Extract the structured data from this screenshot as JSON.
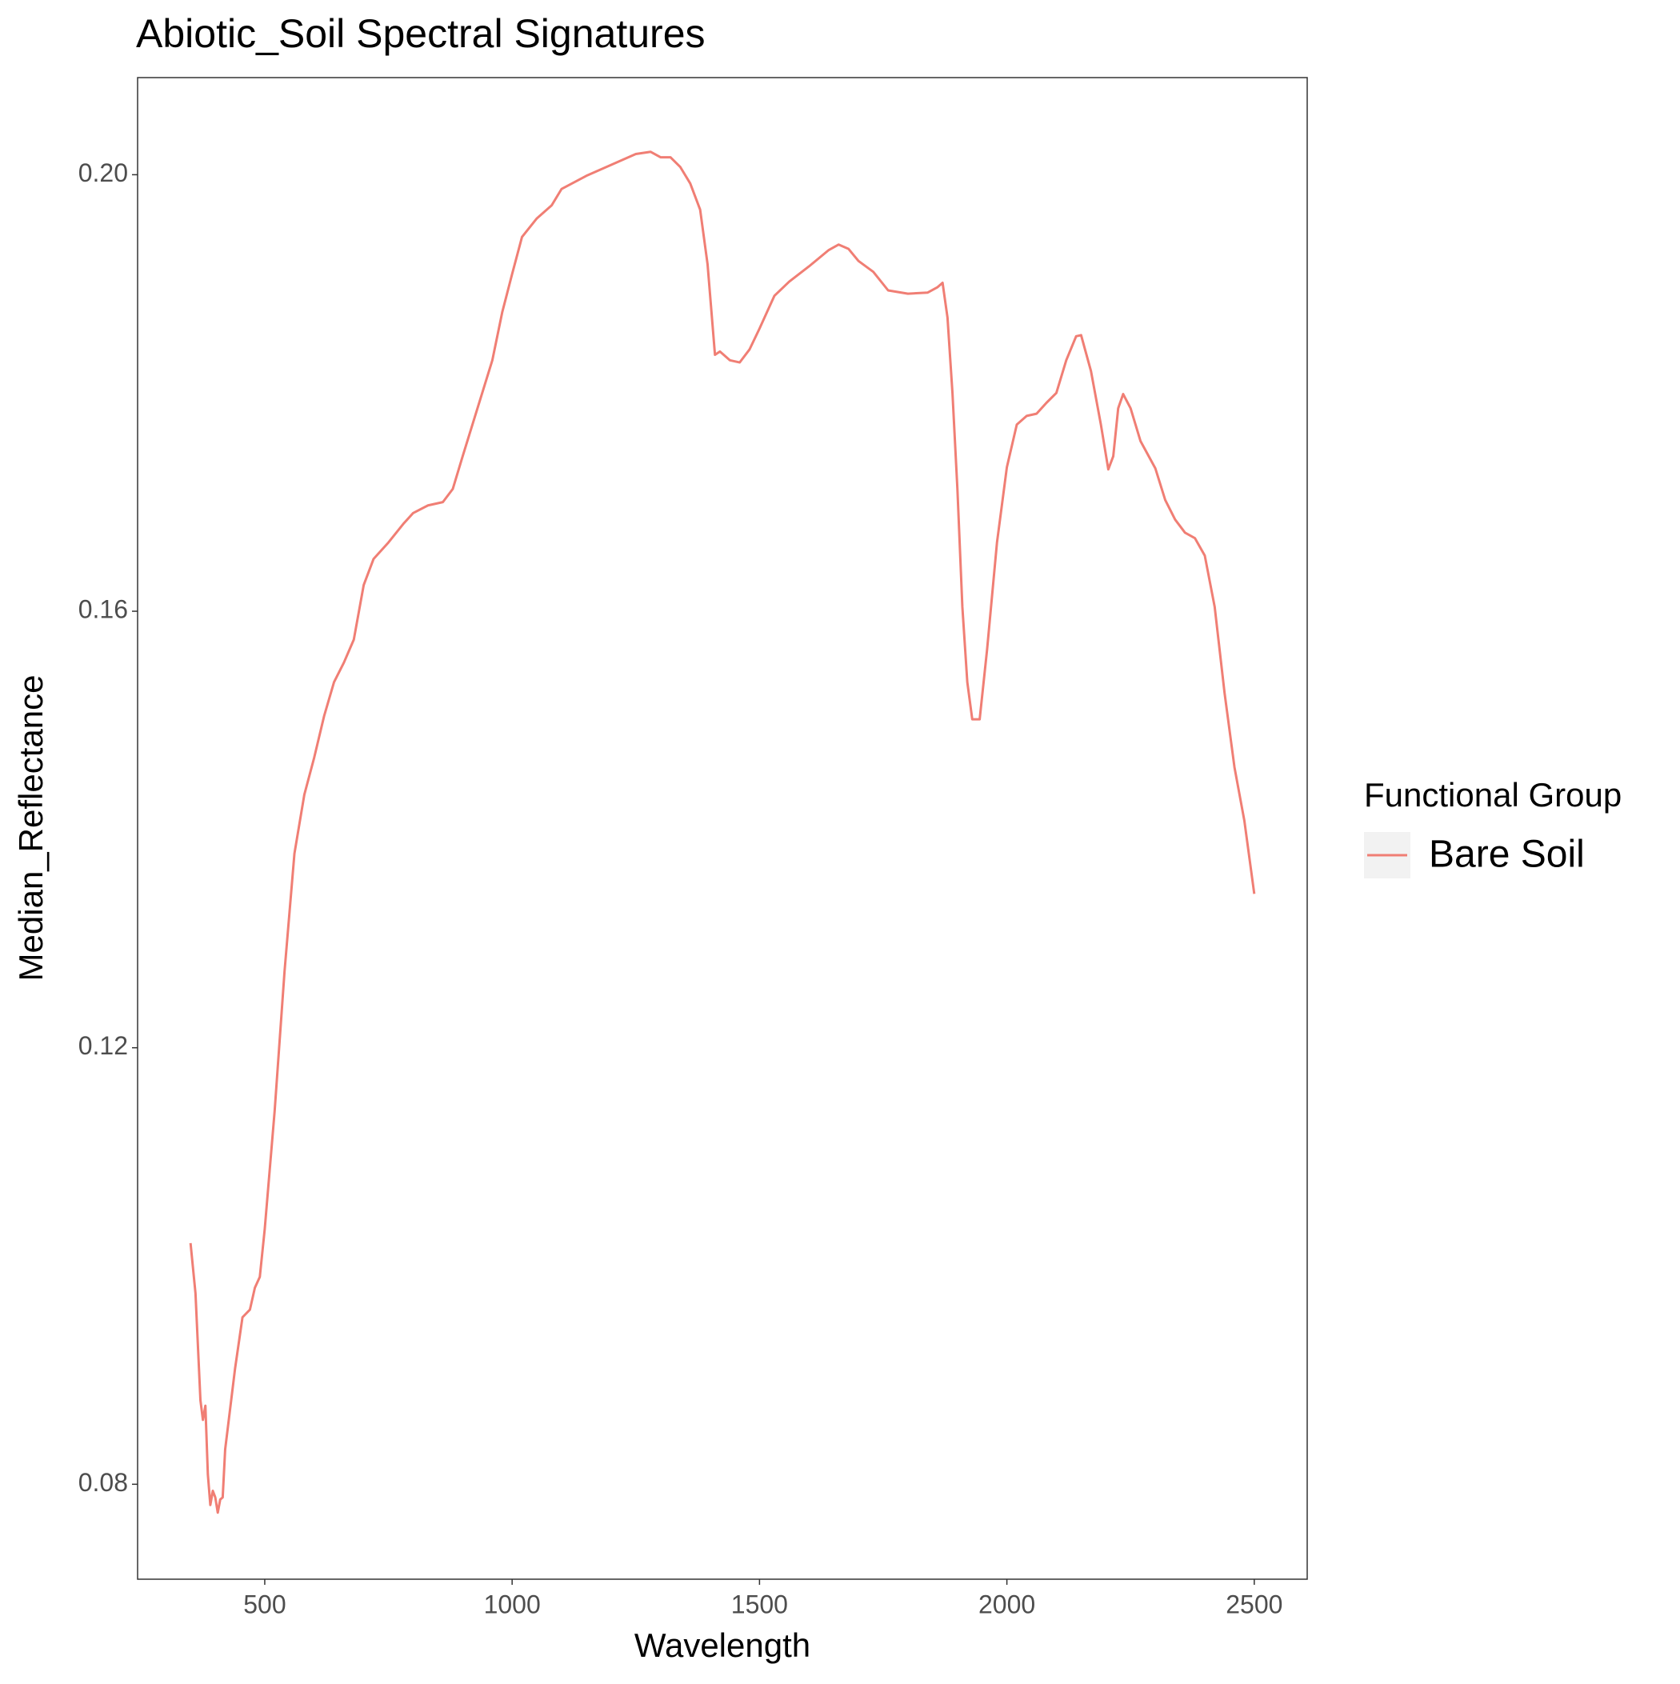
{
  "chart_data": {
    "type": "line",
    "title": "Abiotic_Soil Spectral Signatures",
    "x_label": "Wavelength",
    "y_label": "Median_Reflectance",
    "legend_title": "Functional Group",
    "legend_position": "right",
    "grid": false,
    "x": [
      350,
      360,
      370,
      375,
      380,
      385,
      390,
      395,
      400,
      405,
      410,
      415,
      420,
      440,
      455,
      470,
      480,
      490,
      500,
      520,
      540,
      560,
      580,
      600,
      620,
      640,
      660,
      680,
      700,
      720,
      750,
      780,
      800,
      830,
      860,
      880,
      900,
      930,
      960,
      980,
      1000,
      1020,
      1050,
      1080,
      1100,
      1150,
      1200,
      1250,
      1280,
      1300,
      1320,
      1340,
      1360,
      1380,
      1395,
      1410,
      1420,
      1440,
      1460,
      1480,
      1500,
      1530,
      1560,
      1600,
      1640,
      1660,
      1680,
      1700,
      1730,
      1760,
      1800,
      1840,
      1860,
      1870,
      1880,
      1890,
      1900,
      1910,
      1920,
      1930,
      1945,
      1960,
      1980,
      2000,
      2020,
      2040,
      2060,
      2080,
      2100,
      2120,
      2140,
      2150,
      2170,
      2190,
      2205,
      2215,
      2225,
      2235,
      2250,
      2270,
      2300,
      2320,
      2340,
      2360,
      2380,
      2400,
      2420,
      2440,
      2460,
      2480,
      2500
    ],
    "series": [
      {
        "name": "Bare Soil",
        "color": "#f07e74",
        "values": [
          0.1021,
          0.0975,
          0.0877,
          0.0859,
          0.0872,
          0.0809,
          0.0781,
          0.0794,
          0.0788,
          0.0774,
          0.0786,
          0.0788,
          0.0832,
          0.0906,
          0.0953,
          0.096,
          0.098,
          0.099,
          0.1034,
          0.1142,
          0.127,
          0.1378,
          0.1432,
          0.1466,
          0.1504,
          0.1535,
          0.1553,
          0.1574,
          0.1624,
          0.1648,
          0.1663,
          0.168,
          0.169,
          0.1697,
          0.17,
          0.1712,
          0.1742,
          0.1786,
          0.183,
          0.1874,
          0.1909,
          0.1943,
          0.196,
          0.1972,
          0.1987,
          0.1999,
          0.2009,
          0.2019,
          0.2021,
          0.2016,
          0.2016,
          0.2007,
          0.1992,
          0.1968,
          0.1918,
          0.1835,
          0.1838,
          0.183,
          0.1828,
          0.184,
          0.1859,
          0.1889,
          0.1902,
          0.1916,
          0.1931,
          0.1936,
          0.1932,
          0.1921,
          0.1911,
          0.1894,
          0.1891,
          0.1892,
          0.1897,
          0.1901,
          0.1869,
          0.18,
          0.1712,
          0.1604,
          0.1535,
          0.1501,
          0.1501,
          0.1565,
          0.1663,
          0.1732,
          0.1771,
          0.1779,
          0.1781,
          0.1791,
          0.18,
          0.183,
          0.1852,
          0.1853,
          0.182,
          0.1771,
          0.173,
          0.1742,
          0.1786,
          0.1799,
          0.1786,
          0.1756,
          0.1731,
          0.1702,
          0.1684,
          0.1672,
          0.1667,
          0.1651,
          0.1604,
          0.1525,
          0.1457,
          0.1408,
          0.1341
        ]
      }
    ],
    "xlim": [
      243,
      2607
    ],
    "xticks": [
      500,
      1000,
      1500,
      2000,
      2500
    ],
    "ylim": [
      0.0713,
      0.2089
    ],
    "yticks": [
      {
        "value": 0.2,
        "label": "0.20"
      },
      0.16,
      0.12,
      0.08
    ]
  }
}
